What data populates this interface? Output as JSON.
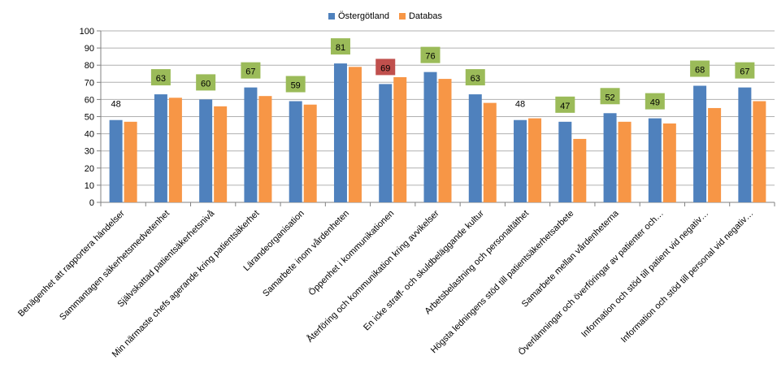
{
  "chart_data": {
    "type": "bar",
    "categories": [
      "Benägenhet att rapportera händelser",
      "Sammantagen säkerhetsmedvetenhet",
      "Självskattad patientsäkerhetsnivå",
      "Min närmaste chefs agerande kring patientsäkerhet",
      "Lärandeorganisation",
      "Samarbete inom vårdenheten",
      "Öppenhet i kommunikationen",
      "Återföring och kommunikation kring avvikelser",
      "En icke straff- och skuldbeläggande kultur",
      "Arbetsbelastning och personaltäthet",
      "Högsta ledningens stöd till patientsäkerhetsarbete",
      "Samarbete mellan vårdenheterna",
      "Överlämningar och överföringar av patienter och…",
      "Information och stöd till patient vid negativ…",
      "Information och stöd till personal vid negativ…"
    ],
    "series": [
      {
        "name": "Östergötland",
        "color": "#4f81bd",
        "values": [
          48,
          63,
          60,
          67,
          59,
          81,
          69,
          76,
          63,
          48,
          47,
          52,
          49,
          68,
          67
        ]
      },
      {
        "name": "Databas",
        "color": "#f79646",
        "values": [
          47,
          61,
          56,
          62,
          57,
          79,
          73,
          72,
          58,
          49,
          37,
          47,
          46,
          55,
          59
        ]
      }
    ],
    "data_labels": [
      "48",
      "63",
      "60",
      "67",
      "59",
      "81",
      "69",
      "76",
      "63",
      "48",
      "47",
      "52",
      "49",
      "68",
      "67"
    ],
    "label_highlight": [
      "none",
      "green",
      "green",
      "green",
      "green",
      "green",
      "red",
      "green",
      "green",
      "none",
      "green",
      "green",
      "green",
      "green",
      "green"
    ],
    "highlight_colors": {
      "green": "#9bbb59",
      "red": "#c0504d"
    },
    "yticks": [
      "0",
      "10",
      "20",
      "30",
      "40",
      "50",
      "60",
      "70",
      "80",
      "90",
      "100"
    ],
    "ylim": [
      0,
      100
    ],
    "grid": true,
    "legend_position": "top",
    "title": "",
    "xlabel": "",
    "ylabel": ""
  }
}
